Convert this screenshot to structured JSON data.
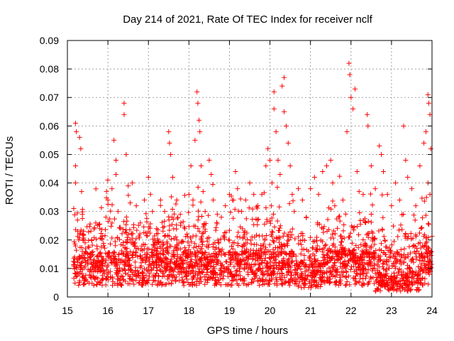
{
  "chart_data": {
    "type": "scatter",
    "title": "Day 214 of 2021, Rate Of TEC Index for receiver nclf",
    "xlabel": "GPS time / hours",
    "ylabel": "ROTI / TECUs",
    "xlim": [
      15,
      24
    ],
    "ylim": [
      0,
      0.09
    ],
    "x_ticks": [
      15,
      16,
      17,
      18,
      19,
      20,
      21,
      22,
      23,
      24
    ],
    "x_tick_labels": [
      "15",
      "16",
      "17",
      "18",
      "19",
      "20",
      "21",
      "22",
      "23",
      "24"
    ],
    "y_ticks": [
      0,
      0.01,
      0.02,
      0.03,
      0.04,
      0.05,
      0.06,
      0.07,
      0.08,
      0.09
    ],
    "y_tick_labels": [
      "0",
      "0.01",
      "0.02",
      "0.03",
      "0.04",
      "0.05",
      "0.06",
      "0.07",
      "0.08",
      "0.09"
    ],
    "grid": true,
    "marker": "+",
    "color": "#ff0000",
    "series": [
      {
        "name": "ROTI",
        "points": [
          [
            15.2,
            0.061
          ],
          [
            15.22,
            0.058
          ],
          [
            15.2,
            0.046
          ],
          [
            15.2,
            0.04
          ],
          [
            15.3,
            0.056
          ],
          [
            15.33,
            0.052
          ],
          [
            15.35,
            0.037
          ],
          [
            15.37,
            0.029
          ],
          [
            15.25,
            0.027
          ],
          [
            15.28,
            0.02
          ],
          [
            15.3,
            0.014
          ],
          [
            15.4,
            0.022
          ],
          [
            15.45,
            0.016
          ],
          [
            15.5,
            0.012
          ],
          [
            15.6,
            0.02
          ],
          [
            15.7,
            0.026
          ],
          [
            15.8,
            0.024
          ],
          [
            15.9,
            0.018
          ],
          [
            15.95,
            0.028
          ],
          [
            16.0,
            0.034
          ],
          [
            16.1,
            0.038
          ],
          [
            16.15,
            0.055
          ],
          [
            16.2,
            0.048
          ],
          [
            16.2,
            0.043
          ],
          [
            16.25,
            0.03
          ],
          [
            16.3,
            0.024
          ],
          [
            16.4,
            0.068
          ],
          [
            16.4,
            0.064
          ],
          [
            16.45,
            0.05
          ],
          [
            16.5,
            0.039
          ],
          [
            16.55,
            0.033
          ],
          [
            16.6,
            0.04
          ],
          [
            16.7,
            0.032
          ],
          [
            16.8,
            0.026
          ],
          [
            16.9,
            0.034
          ],
          [
            17.0,
            0.042
          ],
          [
            17.05,
            0.036
          ],
          [
            17.1,
            0.03
          ],
          [
            17.2,
            0.024
          ],
          [
            17.3,
            0.034
          ],
          [
            17.4,
            0.03
          ],
          [
            17.5,
            0.058
          ],
          [
            17.52,
            0.054
          ],
          [
            17.55,
            0.05
          ],
          [
            17.6,
            0.042
          ],
          [
            17.7,
            0.034
          ],
          [
            17.8,
            0.026
          ],
          [
            17.9,
            0.024
          ],
          [
            18.0,
            0.036
          ],
          [
            18.05,
            0.046
          ],
          [
            18.1,
            0.034
          ],
          [
            18.15,
            0.055
          ],
          [
            18.2,
            0.072
          ],
          [
            18.22,
            0.068
          ],
          [
            18.25,
            0.062
          ],
          [
            18.27,
            0.058
          ],
          [
            18.3,
            0.046
          ],
          [
            18.35,
            0.037
          ],
          [
            18.4,
            0.03
          ],
          [
            18.5,
            0.048
          ],
          [
            18.55,
            0.043
          ],
          [
            18.6,
            0.034
          ],
          [
            18.7,
            0.029
          ],
          [
            18.8,
            0.028
          ],
          [
            18.9,
            0.032
          ],
          [
            19.0,
            0.036
          ],
          [
            19.1,
            0.034
          ],
          [
            19.15,
            0.044
          ],
          [
            19.2,
            0.038
          ],
          [
            19.3,
            0.03
          ],
          [
            19.4,
            0.034
          ],
          [
            19.5,
            0.04
          ],
          [
            19.6,
            0.036
          ],
          [
            19.7,
            0.032
          ],
          [
            19.8,
            0.036
          ],
          [
            19.9,
            0.046
          ],
          [
            19.95,
            0.052
          ],
          [
            20.0,
            0.048
          ],
          [
            20.05,
            0.04
          ],
          [
            20.1,
            0.072
          ],
          [
            20.1,
            0.066
          ],
          [
            20.15,
            0.058
          ],
          [
            20.2,
            0.048
          ],
          [
            20.25,
            0.043
          ],
          [
            20.3,
            0.074
          ],
          [
            20.35,
            0.077
          ],
          [
            20.35,
            0.065
          ],
          [
            20.4,
            0.06
          ],
          [
            20.45,
            0.054
          ],
          [
            20.5,
            0.046
          ],
          [
            20.55,
            0.036
          ],
          [
            20.6,
            0.03
          ],
          [
            20.7,
            0.038
          ],
          [
            20.8,
            0.034
          ],
          [
            20.9,
            0.028
          ],
          [
            21.0,
            0.038
          ],
          [
            21.1,
            0.042
          ],
          [
            21.2,
            0.036
          ],
          [
            21.3,
            0.044
          ],
          [
            21.4,
            0.046
          ],
          [
            21.5,
            0.048
          ],
          [
            21.55,
            0.04
          ],
          [
            21.6,
            0.032
          ],
          [
            21.7,
            0.028
          ],
          [
            21.8,
            0.034
          ],
          [
            21.9,
            0.058
          ],
          [
            21.95,
            0.082
          ],
          [
            21.97,
            0.078
          ],
          [
            22.0,
            0.07
          ],
          [
            22.05,
            0.066
          ],
          [
            22.1,
            0.073
          ],
          [
            22.15,
            0.044
          ],
          [
            22.2,
            0.037
          ],
          [
            22.3,
            0.036
          ],
          [
            22.4,
            0.064
          ],
          [
            22.42,
            0.06
          ],
          [
            22.5,
            0.046
          ],
          [
            22.6,
            0.038
          ],
          [
            22.7,
            0.053
          ],
          [
            22.75,
            0.05
          ],
          [
            22.8,
            0.044
          ],
          [
            22.9,
            0.036
          ],
          [
            23.0,
            0.032
          ],
          [
            23.1,
            0.04
          ],
          [
            23.2,
            0.034
          ],
          [
            23.3,
            0.06
          ],
          [
            23.35,
            0.048
          ],
          [
            23.4,
            0.042
          ],
          [
            23.5,
            0.038
          ],
          [
            23.6,
            0.032
          ],
          [
            23.7,
            0.046
          ],
          [
            23.8,
            0.054
          ],
          [
            23.85,
            0.058
          ],
          [
            23.9,
            0.071
          ],
          [
            23.92,
            0.068
          ],
          [
            23.95,
            0.064
          ],
          [
            23.97,
            0.052
          ],
          [
            23.9,
            0.04
          ],
          [
            23.95,
            0.036
          ]
        ]
      }
    ],
    "background_density": "dense cloud of points between 0.002 and 0.035 across 15.2–24 h"
  }
}
